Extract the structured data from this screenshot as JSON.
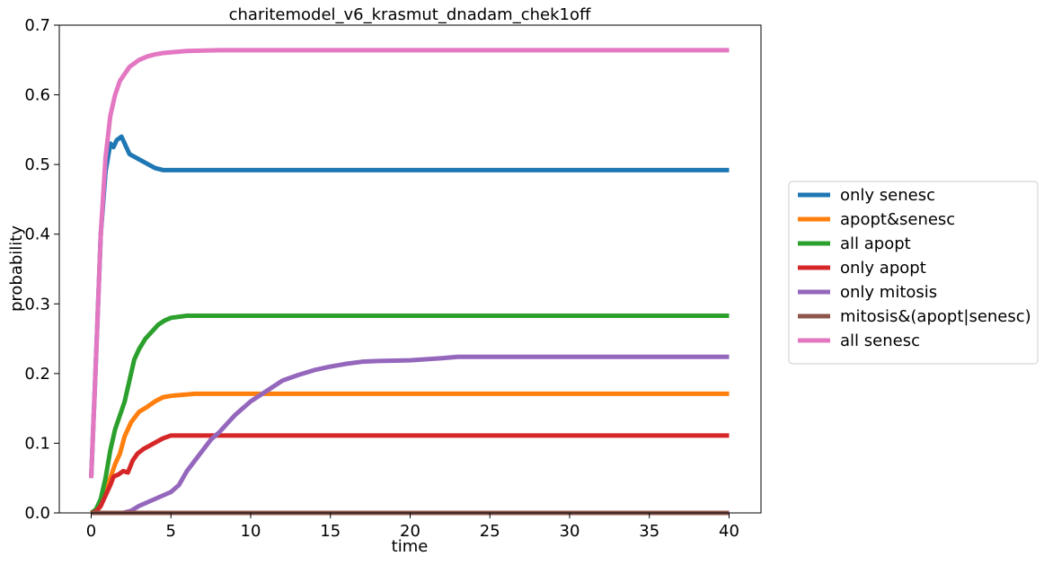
{
  "chart_data": {
    "type": "line",
    "title": "charitemodel_v6_krasmut_dnadam_chek1off",
    "xlabel": "time",
    "ylabel": "probability",
    "xlim": [
      -2,
      42
    ],
    "ylim": [
      0,
      0.7
    ],
    "xticks": [
      0,
      5,
      10,
      15,
      20,
      25,
      30,
      35,
      40
    ],
    "yticks": [
      0.0,
      0.1,
      0.2,
      0.3,
      0.4,
      0.5,
      0.6,
      0.7
    ],
    "xtick_labels": [
      "0",
      "5",
      "10",
      "15",
      "20",
      "25",
      "30",
      "35",
      "40"
    ],
    "ytick_labels": [
      "0.0",
      "0.1",
      "0.2",
      "0.3",
      "0.4",
      "0.5",
      "0.6",
      "0.7"
    ],
    "grid": false,
    "legend_position": "right, outside plot",
    "series": [
      {
        "name": "only senesc",
        "color": "#1f77b4",
        "points": [
          [
            0,
            0.05
          ],
          [
            0.3,
            0.22
          ],
          [
            0.6,
            0.4
          ],
          [
            0.9,
            0.49
          ],
          [
            1.2,
            0.53
          ],
          [
            1.4,
            0.525
          ],
          [
            1.6,
            0.535
          ],
          [
            1.9,
            0.54
          ],
          [
            2.1,
            0.53
          ],
          [
            2.4,
            0.515
          ],
          [
            2.8,
            0.51
          ],
          [
            3.2,
            0.505
          ],
          [
            3.6,
            0.5
          ],
          [
            4.0,
            0.495
          ],
          [
            4.5,
            0.492
          ],
          [
            6,
            0.492
          ],
          [
            10,
            0.492
          ],
          [
            20,
            0.492
          ],
          [
            30,
            0.492
          ],
          [
            40,
            0.492
          ]
        ]
      },
      {
        "name": "apopt&senesc",
        "color": "#ff7f0e",
        "points": [
          [
            0,
            0
          ],
          [
            0.3,
            0.002
          ],
          [
            0.6,
            0.01
          ],
          [
            0.9,
            0.03
          ],
          [
            1.2,
            0.05
          ],
          [
            1.5,
            0.07
          ],
          [
            1.8,
            0.085
          ],
          [
            2.1,
            0.11
          ],
          [
            2.5,
            0.13
          ],
          [
            3,
            0.145
          ],
          [
            3.5,
            0.152
          ],
          [
            4,
            0.16
          ],
          [
            4.5,
            0.166
          ],
          [
            5,
            0.168
          ],
          [
            5.5,
            0.169
          ],
          [
            6.5,
            0.171
          ],
          [
            10,
            0.171
          ],
          [
            20,
            0.171
          ],
          [
            30,
            0.171
          ],
          [
            40,
            0.171
          ]
        ]
      },
      {
        "name": "all apopt",
        "color": "#2ca02c",
        "points": [
          [
            0,
            0
          ],
          [
            0.3,
            0.005
          ],
          [
            0.6,
            0.02
          ],
          [
            0.9,
            0.05
          ],
          [
            1.2,
            0.09
          ],
          [
            1.5,
            0.12
          ],
          [
            1.8,
            0.14
          ],
          [
            2.1,
            0.16
          ],
          [
            2.4,
            0.19
          ],
          [
            2.7,
            0.22
          ],
          [
            3,
            0.235
          ],
          [
            3.4,
            0.25
          ],
          [
            3.8,
            0.26
          ],
          [
            4.2,
            0.27
          ],
          [
            4.6,
            0.276
          ],
          [
            5,
            0.28
          ],
          [
            6,
            0.283
          ],
          [
            10,
            0.283
          ],
          [
            20,
            0.283
          ],
          [
            30,
            0.283
          ],
          [
            40,
            0.283
          ]
        ]
      },
      {
        "name": "only apopt",
        "color": "#d62728",
        "points": [
          [
            0,
            0
          ],
          [
            0.3,
            0.002
          ],
          [
            0.6,
            0.01
          ],
          [
            0.9,
            0.025
          ],
          [
            1.2,
            0.04
          ],
          [
            1.4,
            0.052
          ],
          [
            1.7,
            0.055
          ],
          [
            2,
            0.06
          ],
          [
            2.3,
            0.058
          ],
          [
            2.6,
            0.075
          ],
          [
            2.9,
            0.085
          ],
          [
            3.3,
            0.092
          ],
          [
            3.7,
            0.097
          ],
          [
            4.1,
            0.102
          ],
          [
            4.5,
            0.107
          ],
          [
            5,
            0.111
          ],
          [
            6,
            0.111
          ],
          [
            10,
            0.111
          ],
          [
            20,
            0.111
          ],
          [
            30,
            0.111
          ],
          [
            40,
            0.111
          ]
        ]
      },
      {
        "name": "only mitosis",
        "color": "#9467bd",
        "points": [
          [
            0,
            0
          ],
          [
            1,
            0
          ],
          [
            2,
            0
          ],
          [
            2.5,
            0.003
          ],
          [
            3,
            0.01
          ],
          [
            3.5,
            0.015
          ],
          [
            4,
            0.02
          ],
          [
            4.5,
            0.025
          ],
          [
            5,
            0.03
          ],
          [
            5.5,
            0.04
          ],
          [
            6,
            0.06
          ],
          [
            6.5,
            0.075
          ],
          [
            7,
            0.09
          ],
          [
            7.5,
            0.105
          ],
          [
            8,
            0.115
          ],
          [
            9,
            0.14
          ],
          [
            10,
            0.16
          ],
          [
            11,
            0.175
          ],
          [
            12,
            0.19
          ],
          [
            13,
            0.198
          ],
          [
            14,
            0.205
          ],
          [
            15,
            0.21
          ],
          [
            16,
            0.214
          ],
          [
            17,
            0.217
          ],
          [
            18,
            0.218
          ],
          [
            20,
            0.219
          ],
          [
            22,
            0.222
          ],
          [
            23,
            0.224
          ],
          [
            30,
            0.224
          ],
          [
            40,
            0.224
          ]
        ]
      },
      {
        "name": "mitosis&(apopt|senesc)",
        "color": "#8c564b",
        "points": [
          [
            0,
            0
          ],
          [
            10,
            0
          ],
          [
            20,
            0
          ],
          [
            30,
            0
          ],
          [
            40,
            0
          ]
        ]
      },
      {
        "name": "all senesc",
        "color": "#e377c2",
        "points": [
          [
            0,
            0.05
          ],
          [
            0.3,
            0.22
          ],
          [
            0.6,
            0.4
          ],
          [
            0.9,
            0.51
          ],
          [
            1.2,
            0.57
          ],
          [
            1.5,
            0.6
          ],
          [
            1.8,
            0.62
          ],
          [
            2.1,
            0.63
          ],
          [
            2.4,
            0.64
          ],
          [
            2.7,
            0.645
          ],
          [
            3,
            0.65
          ],
          [
            3.5,
            0.655
          ],
          [
            4,
            0.658
          ],
          [
            4.5,
            0.66
          ],
          [
            5,
            0.661
          ],
          [
            6,
            0.663
          ],
          [
            8,
            0.664
          ],
          [
            10,
            0.664
          ],
          [
            20,
            0.664
          ],
          [
            30,
            0.664
          ],
          [
            40,
            0.664
          ]
        ]
      }
    ]
  }
}
